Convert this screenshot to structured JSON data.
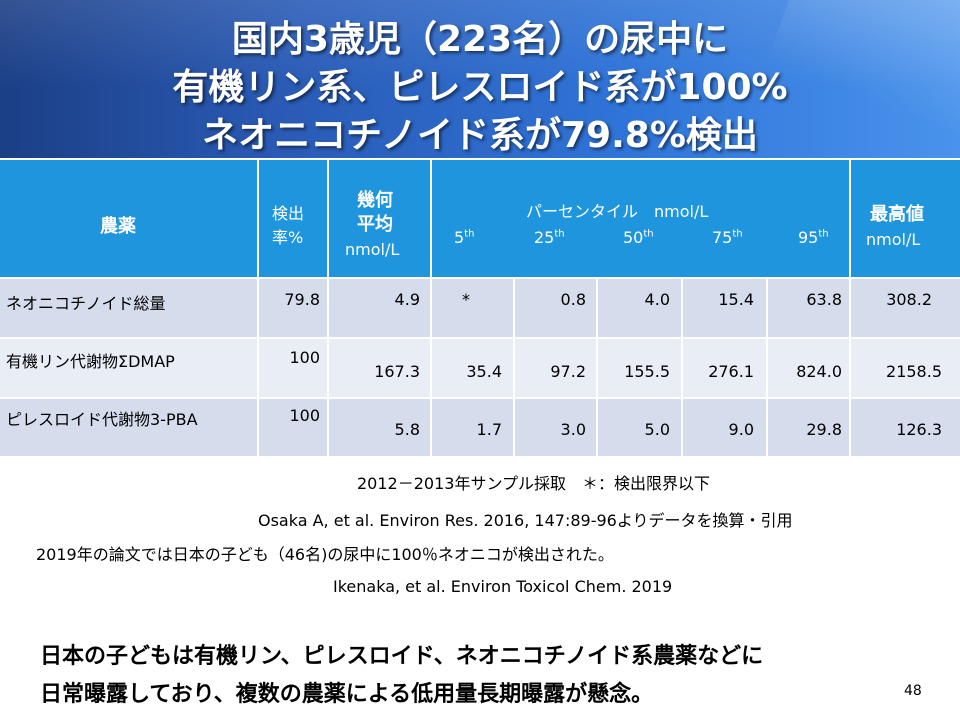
{
  "title": {
    "line1": "国内3歳児（223名）の尿中に",
    "line2": "有機リン系、ピレスロイド系が100%",
    "line3": "ネオニコチノイド系が79.8%検出"
  },
  "table": {
    "headers": {
      "pesticide": "農薬",
      "detect_rate_1": "検出",
      "detect_rate_2": "率%",
      "geo_mean_1": "幾何",
      "geo_mean_2": "平均",
      "geo_mean_unit": "nmol/L",
      "percentile": "パーセンタイル　nmol/L",
      "p5": "5",
      "p25": "25",
      "p50": "50",
      "p75": "75",
      "p95": "95",
      "th": "th",
      "max_1": "最高値",
      "max_unit": "nmol/L"
    },
    "rows": [
      {
        "name": "ネオニコチノイド総量",
        "rate": "79.8",
        "geomean": "4.9",
        "p5": "*",
        "p25": "0.8",
        "p50": "4.0",
        "p75": "15.4",
        "p95": "63.8",
        "max": "308.2"
      },
      {
        "name": "有機リン代謝物ΣDMAP",
        "rate": "100",
        "geomean": "167.3",
        "p5": "35.4",
        "p25": "97.2",
        "p50": "155.5",
        "p75": "276.1",
        "p95": "824.0",
        "max": "2158.5"
      },
      {
        "name": "ピレスロイド代謝物3-PBA",
        "rate": "100",
        "geomean": "5.8",
        "p5": "1.7",
        "p25": "3.0",
        "p50": "5.0",
        "p75": "9.0",
        "p95": "29.8",
        "max": "126.3"
      }
    ]
  },
  "notes": {
    "sampling": "2012－2013年サンプル採取　＊：検出限界以下",
    "citation1": "Osaka A, et al.  Environ Res. 2016, 147:89-96よりデータを換算・引用",
    "finding2019": "2019年の論文では日本の子ども（46名)の尿中に100％ネオニコが検出された。",
    "citation2": "Ikenaka, et al. Environ Toxicol Chem. 2019"
  },
  "conclusion": {
    "line1": "日本の子どもは有機リン、ピレスロイド、ネオニコチノイド系農薬などに",
    "line2": "日常曝露しており、複数の農薬による低用量長期曝露が懸念。"
  },
  "page_number": "48",
  "colors": {
    "banner_dark": "#1c3f86",
    "banner_light": "#4a93ec",
    "header_blue": "#1f95dd",
    "row_a": "#d5dcec",
    "row_b": "#e9edf6"
  }
}
